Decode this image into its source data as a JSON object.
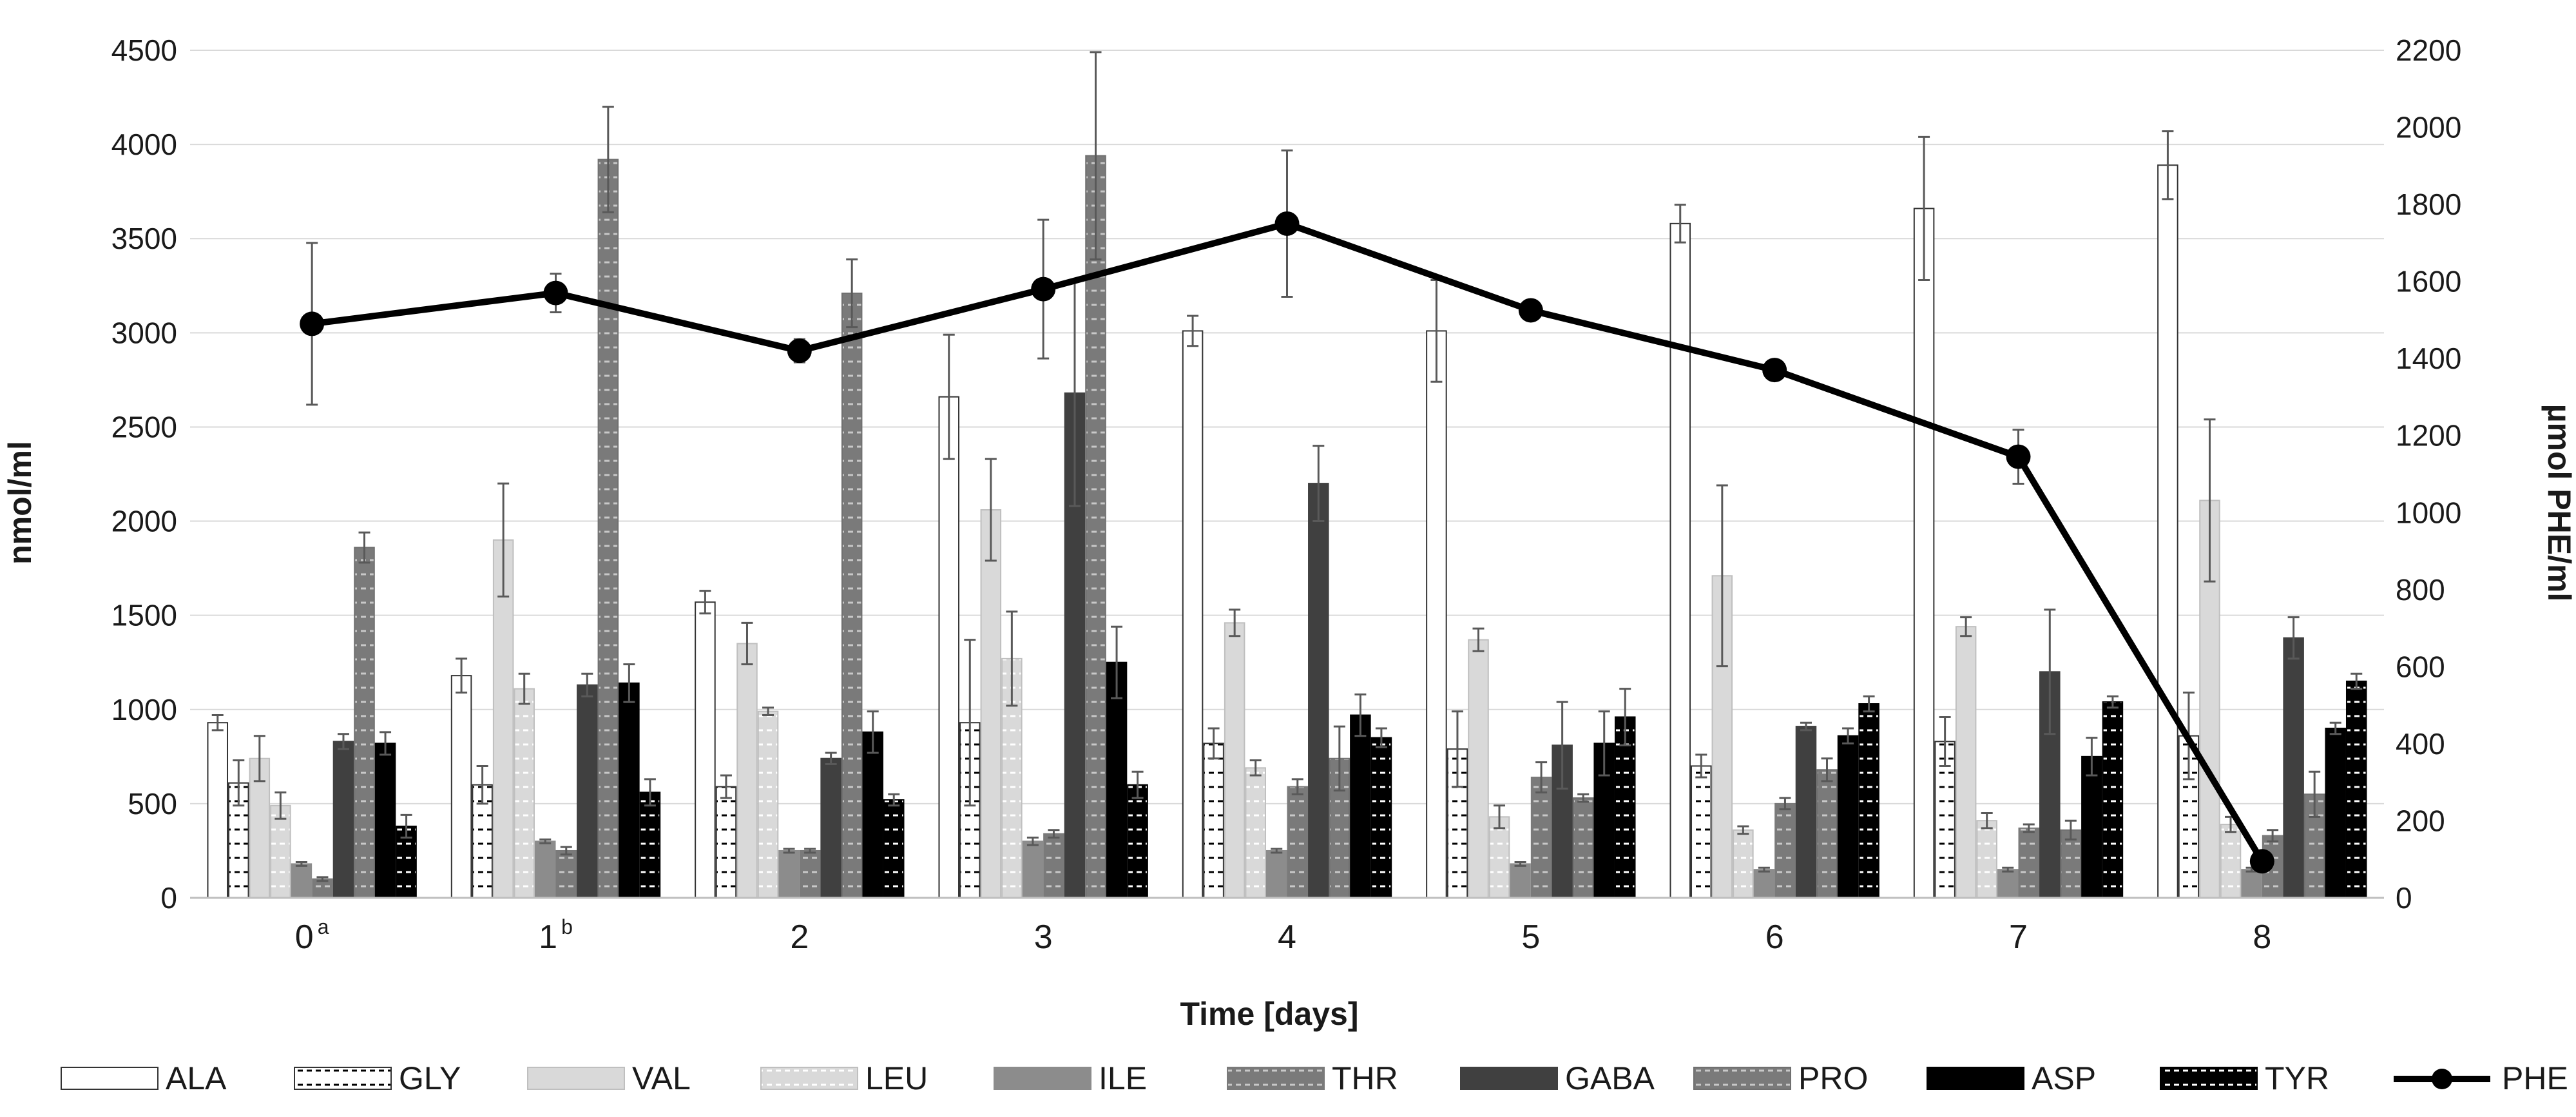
{
  "chart_data": {
    "type": "bar",
    "title": "",
    "xlabel": "Time [days]",
    "ylabel": "nmol/ml",
    "y2label": "µmol PHE/ml",
    "ylim": [
      0,
      4500
    ],
    "y2lim": [
      0,
      2200
    ],
    "yticks": [
      0,
      500,
      1000,
      1500,
      2000,
      2500,
      3000,
      3500,
      4000,
      4500
    ],
    "y2ticks": [
      0,
      200,
      400,
      600,
      800,
      1000,
      1200,
      1400,
      1600,
      1800,
      2000,
      2200
    ],
    "grid": true,
    "legend_position": "bottom",
    "categories": [
      "0",
      "1",
      "2",
      "3",
      "4",
      "5",
      "6",
      "7",
      "8"
    ],
    "category_superscripts": [
      "a",
      "b",
      "",
      "",
      "",
      "",
      "",
      "",
      ""
    ],
    "colors": {
      "ALA": "#ffffff",
      "GLY": "#ffffff",
      "VAL": "#d9d9d9",
      "LEU": "#d9d9d9",
      "ILE": "#8c8c8c",
      "THR": "#7a7a7a",
      "GABA": "#404040",
      "PRO": "#707070",
      "ASP": "#000000",
      "TYR": "#000000",
      "PHE": "#000000"
    },
    "series": [
      {
        "name": "ALA",
        "axis": "left",
        "values": [
          930,
          1180,
          1570,
          2660,
          3010,
          3010,
          3580,
          3660,
          3890
        ],
        "errors": [
          40,
          90,
          60,
          330,
          80,
          270,
          100,
          380,
          180
        ]
      },
      {
        "name": "GLY",
        "axis": "left",
        "values": [
          610,
          600,
          590,
          930,
          820,
          790,
          700,
          830,
          860
        ],
        "errors": [
          120,
          100,
          60,
          440,
          80,
          200,
          60,
          130,
          230
        ]
      },
      {
        "name": "VAL",
        "axis": "left",
        "values": [
          740,
          1900,
          1350,
          2060,
          1460,
          1370,
          1710,
          1440,
          2110
        ],
        "errors": [
          120,
          300,
          110,
          270,
          70,
          60,
          480,
          50,
          430
        ]
      },
      {
        "name": "LEU",
        "axis": "left",
        "values": [
          490,
          1110,
          990,
          1270,
          690,
          430,
          360,
          410,
          390
        ],
        "errors": [
          70,
          80,
          20,
          250,
          40,
          60,
          20,
          40,
          40
        ]
      },
      {
        "name": "ILE",
        "axis": "left",
        "values": [
          180,
          300,
          250,
          300,
          250,
          180,
          150,
          150,
          150
        ],
        "errors": [
          10,
          10,
          10,
          20,
          10,
          10,
          10,
          10,
          10
        ]
      },
      {
        "name": "THR",
        "axis": "left",
        "values": [
          100,
          250,
          250,
          340,
          590,
          640,
          500,
          370,
          330
        ],
        "errors": [
          10,
          20,
          10,
          20,
          40,
          80,
          30,
          20,
          30
        ]
      },
      {
        "name": "GABA",
        "axis": "left",
        "values": [
          830,
          1130,
          740,
          2680,
          2200,
          810,
          910,
          1200,
          1380
        ],
        "errors": [
          40,
          60,
          30,
          600,
          200,
          230,
          20,
          330,
          110
        ]
      },
      {
        "name": "PRO",
        "axis": "left",
        "values": [
          1860,
          3920,
          3210,
          3940,
          740,
          530,
          680,
          360,
          550
        ],
        "errors": [
          80,
          280,
          180,
          550,
          170,
          20,
          60,
          50,
          120
        ]
      },
      {
        "name": "ASP",
        "axis": "left",
        "values": [
          820,
          1140,
          880,
          1250,
          970,
          820,
          860,
          750,
          900
        ],
        "errors": [
          60,
          100,
          110,
          190,
          110,
          170,
          40,
          100,
          30
        ]
      },
      {
        "name": "TYR",
        "axis": "left",
        "values": [
          380,
          560,
          520,
          600,
          850,
          960,
          1030,
          1040,
          1150
        ],
        "errors": [
          60,
          70,
          30,
          70,
          50,
          150,
          40,
          30,
          40
        ]
      },
      {
        "name": "PHE",
        "axis": "right",
        "type": "line",
        "values": [
          1490,
          1570,
          1420,
          1580,
          1750,
          1525,
          1370,
          1145,
          95
        ],
        "errors": [
          210,
          50,
          30,
          180,
          190,
          0,
          0,
          70,
          0
        ]
      }
    ]
  }
}
